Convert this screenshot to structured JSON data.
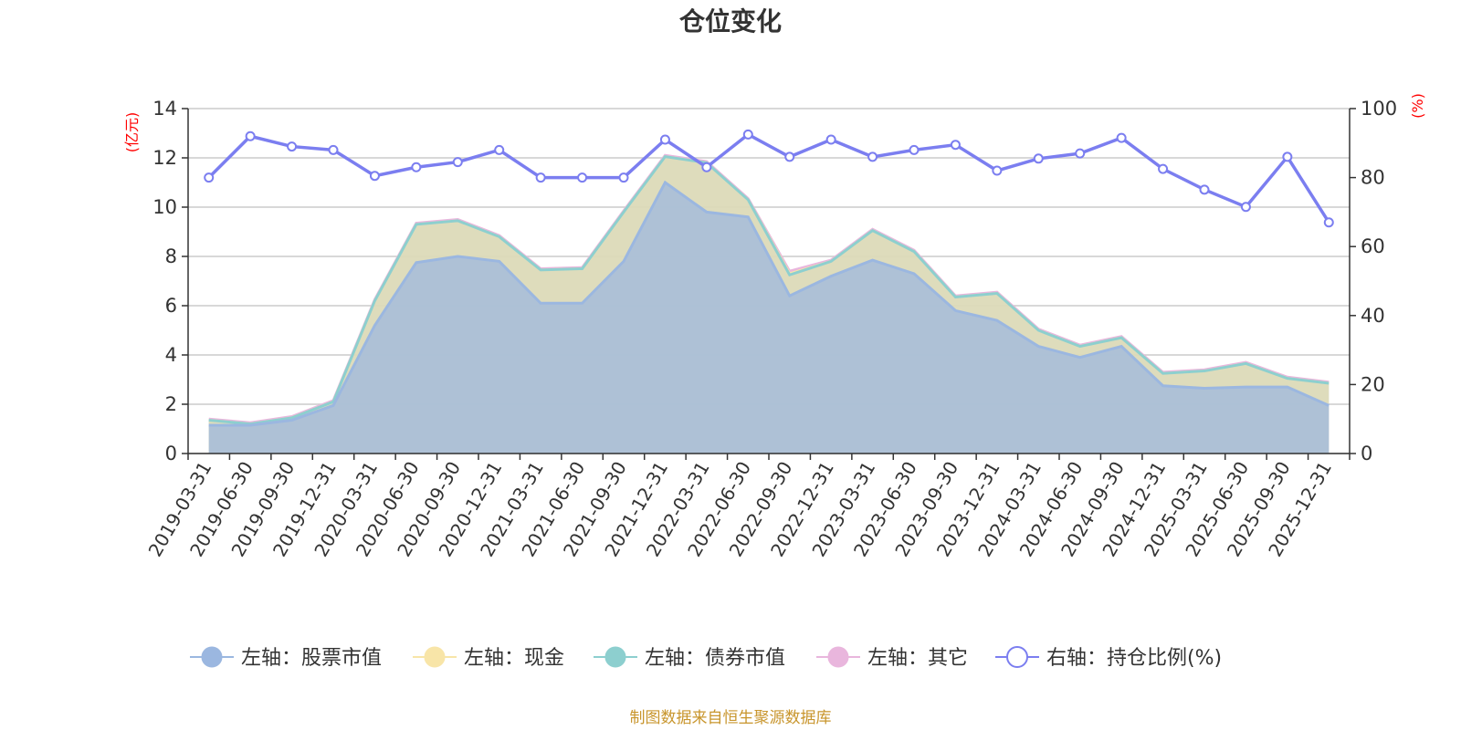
{
  "chart_data": {
    "type": "area",
    "title": "仓位变化",
    "categories": [
      "2019-03-31",
      "2019-06-30",
      "2019-09-30",
      "2019-12-31",
      "2020-03-31",
      "2020-06-30",
      "2020-09-30",
      "2020-12-31",
      "2021-03-31",
      "2021-06-30",
      "2021-09-30",
      "2021-12-31",
      "2022-03-31",
      "2022-06-30",
      "2022-09-30",
      "2022-12-31",
      "2023-03-31",
      "2023-06-30",
      "2023-09-30",
      "2023-12-31",
      "2024-03-31",
      "2024-06-30",
      "2024-09-30",
      "2024-12-31",
      "2025-03-31",
      "2025-06-30",
      "2025-09-30",
      "2025-12-31"
    ],
    "left_axis": {
      "unit": "(亿元)",
      "ylim": [
        0,
        14
      ],
      "ticks": [
        "0",
        "2",
        "4",
        "6",
        "8",
        "10",
        "12",
        "14"
      ]
    },
    "right_axis": {
      "unit": "(%)",
      "ylim": [
        0,
        100
      ],
      "ticks": [
        "0",
        "20",
        "40",
        "60",
        "80",
        "100"
      ]
    },
    "series": [
      {
        "name": "左轴：股票市值",
        "axis": "left",
        "stacked_total": false,
        "values": [
          1.15,
          1.15,
          1.35,
          1.95,
          5.2,
          7.75,
          8.0,
          7.8,
          6.1,
          6.1,
          7.8,
          11.0,
          9.8,
          9.6,
          6.4,
          7.2,
          7.85,
          7.3,
          5.8,
          5.4,
          4.35,
          3.9,
          4.35,
          2.75,
          2.65,
          2.7,
          2.7,
          1.95
        ]
      },
      {
        "name": "左轴：现金",
        "axis": "left",
        "values": [
          1.35,
          1.2,
          1.45,
          2.1,
          6.2,
          9.3,
          9.45,
          8.8,
          7.45,
          7.5,
          9.8,
          12.05,
          11.8,
          10.3,
          7.3,
          7.8,
          9.05,
          8.2,
          6.35,
          6.5,
          5.0,
          4.35,
          4.7,
          3.25,
          3.35,
          3.65,
          3.05,
          2.85
        ]
      },
      {
        "name": "左轴：债券市值",
        "axis": "left",
        "values": [
          1.35,
          1.2,
          1.45,
          2.1,
          6.2,
          9.3,
          9.45,
          8.8,
          7.45,
          7.5,
          9.8,
          12.05,
          11.8,
          10.3,
          7.25,
          7.8,
          9.05,
          8.2,
          6.35,
          6.5,
          5.0,
          4.35,
          4.7,
          3.25,
          3.35,
          3.65,
          3.05,
          2.85
        ]
      },
      {
        "name": "左轴：其它",
        "axis": "left",
        "values": [
          1.4,
          1.25,
          1.5,
          2.15,
          6.25,
          9.35,
          9.5,
          8.85,
          7.5,
          7.55,
          9.85,
          12.1,
          11.85,
          10.35,
          7.4,
          7.85,
          9.1,
          8.25,
          6.4,
          6.55,
          5.05,
          4.4,
          4.75,
          3.3,
          3.4,
          3.7,
          3.1,
          2.9
        ]
      },
      {
        "name": "右轴：持仓比例(%)",
        "axis": "right",
        "values": [
          80,
          92,
          89,
          88,
          80.5,
          83,
          84.5,
          88,
          80,
          80,
          80,
          91,
          83,
          92.5,
          86,
          91,
          86,
          88,
          89.5,
          82,
          85.5,
          87,
          91.5,
          82.5,
          76.5,
          71.5,
          86,
          67
        ]
      }
    ],
    "colors": {
      "stock": "#9bb7e0",
      "cash": "#f8e5a8",
      "bond": "#8dcfcf",
      "other": "#e9b6dd",
      "ratio": "#7b7ef0",
      "grid": "#cccccc",
      "axis": "#333333",
      "unit": "#ff0000",
      "source": "#c8952c"
    },
    "legend_position": "bottom",
    "grid": true
  },
  "source_text": "制图数据来自恒生聚源数据库"
}
